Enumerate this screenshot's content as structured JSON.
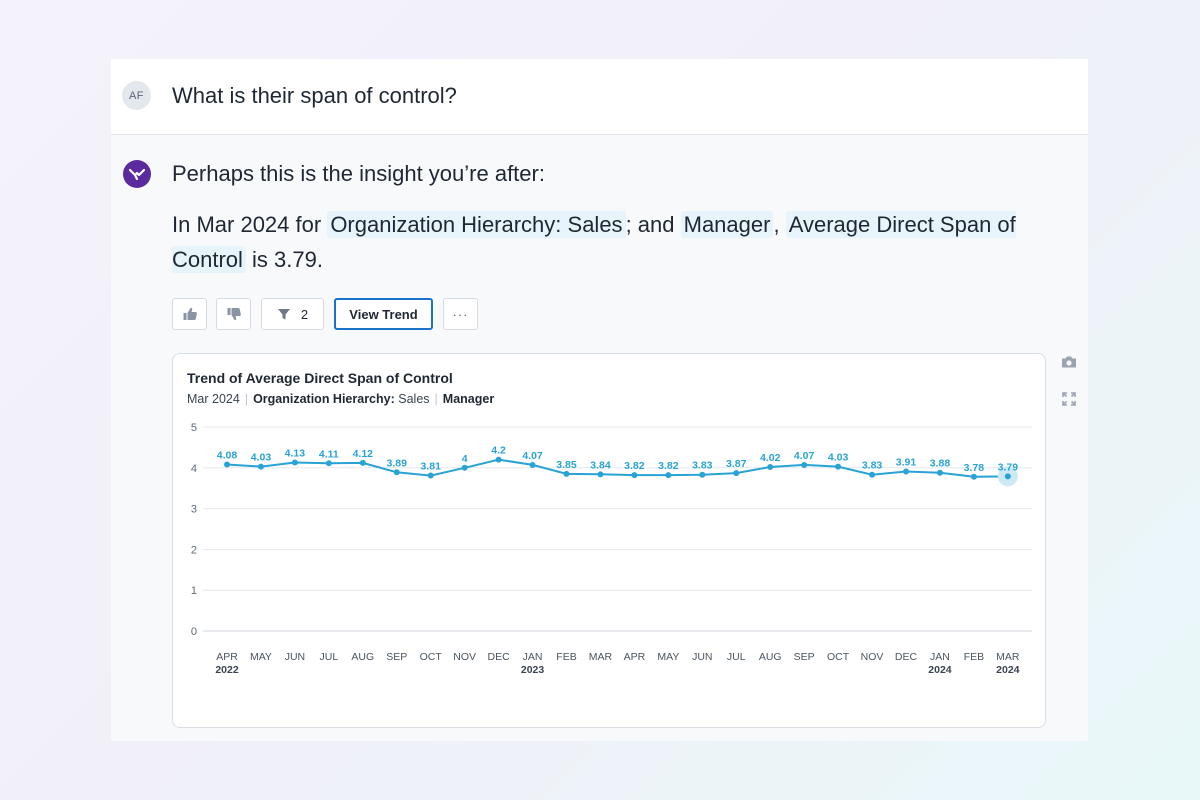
{
  "conversation": {
    "user_initials": "AF",
    "question": "What is their span of control?",
    "bot_intro": "Perhaps this is the insight you’re after:",
    "answer": {
      "prefix": "In Mar 2024 for",
      "filter1": "Organization Hierarchy: Sales",
      "joiner1": "; and",
      "filter2": "Manager",
      "joiner2": ",",
      "metric": "Average Direct Span of Control",
      "suffix": "is 3.79."
    }
  },
  "actions": {
    "thumbs_up_icon": "thumbs-up-icon",
    "thumbs_down_icon": "thumbs-down-icon",
    "filter_count": "2",
    "view_trend_label": "View Trend",
    "more_label": "···"
  },
  "chart_header": {
    "title": "Trend of Average Direct Span of Control",
    "period": "Mar 2024",
    "filter_label": "Organization Hierarchy:",
    "filter_value": "Sales",
    "role": "Manager"
  },
  "colors": {
    "line": "#29a3d4",
    "accent": "#1a73c6",
    "brand": "#5b2a9e"
  },
  "chart_data": {
    "type": "line",
    "title": "Trend of Average Direct Span of Control",
    "ylim": [
      0,
      5
    ],
    "yticks": [
      0,
      1,
      2,
      3,
      4,
      5
    ],
    "grid": true,
    "categories": [
      "APR",
      "MAY",
      "JUN",
      "JUL",
      "AUG",
      "SEP",
      "OCT",
      "NOV",
      "DEC",
      "JAN",
      "FEB",
      "MAR",
      "APR",
      "MAY",
      "JUN",
      "JUL",
      "AUG",
      "SEP",
      "OCT",
      "NOV",
      "DEC",
      "JAN",
      "FEB",
      "MAR"
    ],
    "category_years": [
      "2022",
      "",
      "",
      "",
      "",
      "",
      "",
      "",
      "",
      "2023",
      "",
      "",
      "",
      "",
      "",
      "",
      "",
      "",
      "",
      "",
      "",
      "2024",
      "",
      "2024"
    ],
    "series": [
      {
        "values": [
          4.08,
          4.03,
          4.13,
          4.11,
          4.12,
          3.89,
          3.81,
          4,
          4.2,
          4.07,
          3.85,
          3.84,
          3.82,
          3.82,
          3.83,
          3.87,
          4.02,
          4.07,
          4.03,
          3.83,
          3.91,
          3.88,
          3.78,
          3.79
        ]
      }
    ]
  }
}
